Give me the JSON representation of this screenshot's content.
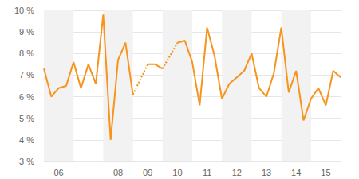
{
  "chart_data": {
    "type": "line",
    "categories": [
      null,
      null,
      "06",
      null,
      null,
      null,
      null,
      null,
      null,
      null,
      "08",
      null,
      null,
      null,
      "09",
      null,
      null,
      null,
      "10",
      null,
      null,
      null,
      "11",
      null,
      null,
      null,
      "12",
      null,
      null,
      null,
      "13",
      null,
      null,
      null,
      "14",
      null,
      null,
      null,
      "15",
      null,
      null
    ],
    "values": [
      7.3,
      6.0,
      6.4,
      6.5,
      7.6,
      6.4,
      7.5,
      6.6,
      9.8,
      4.0,
      7.7,
      8.5,
      6.1,
      null,
      7.5,
      7.5,
      7.3,
      null,
      8.5,
      8.6,
      7.6,
      5.6,
      9.2,
      7.9,
      5.9,
      6.6,
      6.9,
      7.2,
      8.0,
      6.4,
      6.0,
      7.1,
      9.2,
      6.2,
      7.2,
      4.9,
      5.9,
      6.4,
      5.6,
      7.2,
      6.9
    ],
    "color": "#f7941d",
    "ylim": [
      3,
      10
    ],
    "yticks": [
      {
        "value": 3,
        "label": "3 %"
      },
      {
        "value": 4,
        "label": "4 %"
      },
      {
        "value": 5,
        "label": "5 %"
      },
      {
        "value": 6,
        "label": "6 %"
      },
      {
        "value": 7,
        "label": "7 %"
      },
      {
        "value": 8,
        "label": "8 %"
      },
      {
        "value": 9,
        "label": "9 %"
      },
      {
        "value": 10,
        "label": "10 %"
      }
    ],
    "grid": true
  }
}
